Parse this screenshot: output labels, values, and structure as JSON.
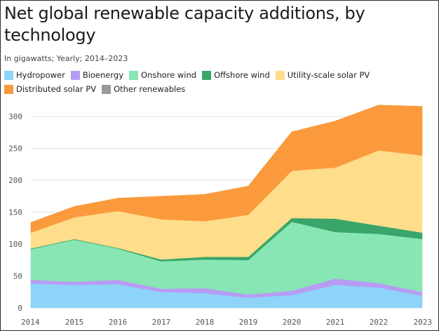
{
  "title": "Net global renewable capacity additions, by technology",
  "subtitle": "In gigawatts; Yearly; 2014–2023",
  "chart_data": {
    "type": "area",
    "stacked": true,
    "title": "Net global renewable capacity additions, by technology",
    "subtitle": "In gigawatts; Yearly; 2014–2023",
    "xlabel": "",
    "ylabel": "",
    "x": [
      2014,
      2015,
      2016,
      2017,
      2018,
      2019,
      2020,
      2021,
      2022,
      2023
    ],
    "ylim": [
      0,
      320
    ],
    "yticks": [
      0,
      50,
      100,
      150,
      200,
      250,
      300
    ],
    "grid": true,
    "legend_position": "top",
    "series": [
      {
        "name": "Hydropower",
        "color": "#8dd4f8",
        "values": [
          38,
          36,
          37,
          25,
          23,
          16,
          20,
          36,
          32,
          19
        ]
      },
      {
        "name": "Bioenergy",
        "color": "#b79cf4",
        "values": [
          6,
          5,
          7,
          5,
          8,
          5,
          7,
          10,
          7,
          6
        ]
      },
      {
        "name": "Onshore wind",
        "color": "#87e6b4",
        "values": [
          48,
          66,
          49,
          43,
          45,
          54,
          108,
          73,
          77,
          83
        ]
      },
      {
        "name": "Offshore wind",
        "color": "#3aa56a",
        "values": [
          1,
          1,
          1,
          3,
          4,
          5,
          6,
          21,
          13,
          10
        ]
      },
      {
        "name": "Utility-scale solar PV",
        "color": "#fedd8b",
        "values": [
          25,
          34,
          58,
          63,
          56,
          66,
          74,
          80,
          118,
          121
        ]
      },
      {
        "name": "Distributed solar PV",
        "color": "#fa9a3c",
        "values": [
          16,
          17,
          20,
          36,
          42,
          45,
          61,
          73,
          71,
          77
        ]
      },
      {
        "name": "Other renewables",
        "color": "#999999",
        "values": [
          0,
          0,
          0,
          0,
          0,
          0,
          0,
          0,
          0,
          0
        ]
      }
    ]
  }
}
